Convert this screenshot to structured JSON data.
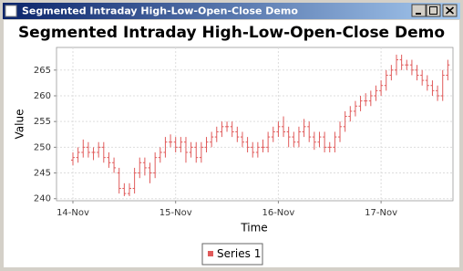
{
  "window": {
    "title": "Segmented Intraday High-Low-Open-Close Demo"
  },
  "chart_data": {
    "type": "hloc",
    "title": "Segmented Intraday High-Low-Open-Close Demo",
    "xlabel": "Time",
    "ylabel": "Value",
    "categories": [
      "14-Nov",
      null,
      null,
      null,
      null,
      null,
      null,
      null,
      null,
      null,
      null,
      null,
      null,
      null,
      null,
      null,
      null,
      null,
      null,
      null,
      "15-Nov",
      null,
      null,
      null,
      null,
      null,
      null,
      null,
      null,
      null,
      null,
      null,
      null,
      null,
      null,
      null,
      null,
      null,
      null,
      null,
      "16-Nov",
      null,
      null,
      null,
      null,
      null,
      null,
      null,
      null,
      null,
      null,
      null,
      null,
      null,
      null,
      null,
      null,
      null,
      null,
      null,
      "17-Nov",
      null,
      null,
      null,
      null,
      null,
      null,
      null,
      null,
      null,
      null,
      null,
      null,
      null
    ],
    "series": [
      {
        "name": "Series 1",
        "color": "#e05a5a",
        "open": [
          247.5,
          248,
          249,
          250,
          249,
          249,
          250,
          248,
          247,
          245,
          242,
          241,
          242,
          245,
          247,
          246,
          245,
          248,
          249,
          251,
          251,
          250,
          251,
          249,
          250,
          248,
          250,
          251,
          252,
          253,
          254,
          254,
          253,
          252,
          251,
          250,
          249,
          250,
          250,
          252,
          253,
          254,
          253,
          252,
          251,
          253,
          254,
          252,
          251,
          252,
          250,
          250,
          252,
          254,
          256,
          257,
          258,
          259,
          259,
          260,
          261,
          262,
          264,
          265,
          267,
          266,
          266,
          265,
          264,
          263,
          262,
          261,
          260,
          264
        ],
        "high": [
          249,
          250,
          251.5,
          251,
          250,
          251,
          251,
          249,
          248,
          246,
          243,
          243,
          246,
          248,
          248,
          247,
          249,
          250,
          252,
          252.5,
          252,
          252,
          252,
          251,
          251,
          251,
          252,
          253,
          254,
          255,
          255,
          255,
          254,
          253,
          252,
          251,
          251,
          251.5,
          253,
          254,
          255,
          256,
          254,
          253,
          254,
          255.5,
          255,
          253,
          253,
          253,
          251,
          253,
          255,
          257,
          258,
          259,
          260,
          260.5,
          261,
          262,
          263,
          265,
          266,
          268,
          268,
          267,
          267,
          266,
          265,
          264,
          263,
          262,
          265,
          267
        ],
        "low": [
          246.5,
          247,
          248,
          248,
          247.5,
          248,
          247,
          246,
          245,
          241,
          240.5,
          240.5,
          241,
          244,
          244.5,
          243,
          244,
          247,
          248,
          250,
          249,
          249,
          247,
          248,
          247,
          247,
          249,
          250,
          251,
          252,
          253,
          252,
          251,
          250,
          249,
          248,
          248,
          249,
          249,
          251,
          252,
          252,
          250,
          250,
          250,
          252,
          251,
          249.5,
          250,
          249,
          249,
          249,
          251,
          253,
          255,
          256,
          257,
          258,
          258,
          259,
          260,
          261,
          263,
          264,
          265,
          265,
          264,
          263,
          262,
          261,
          260,
          259,
          259,
          263
        ],
        "close": [
          248,
          249,
          250,
          249,
          249,
          250,
          248,
          247,
          246,
          242,
          241,
          242,
          245,
          247,
          246,
          245,
          248,
          249,
          251,
          251,
          250,
          251,
          249,
          250,
          248,
          250,
          251,
          252,
          253,
          254,
          254,
          253,
          252,
          251,
          250,
          249,
          250,
          250,
          252,
          253,
          254,
          253,
          252,
          251,
          253,
          254,
          252,
          251,
          252,
          250,
          250,
          252,
          254,
          256,
          257,
          258,
          259,
          259,
          260,
          261,
          262,
          264,
          265,
          267,
          266,
          266,
          265,
          264,
          263,
          262,
          261,
          260,
          264,
          266
        ]
      }
    ],
    "ylim": [
      239.6,
      269.4
    ],
    "yticks": [
      240,
      245,
      250,
      255,
      260,
      265
    ],
    "grid": true,
    "legend": "bottom"
  }
}
